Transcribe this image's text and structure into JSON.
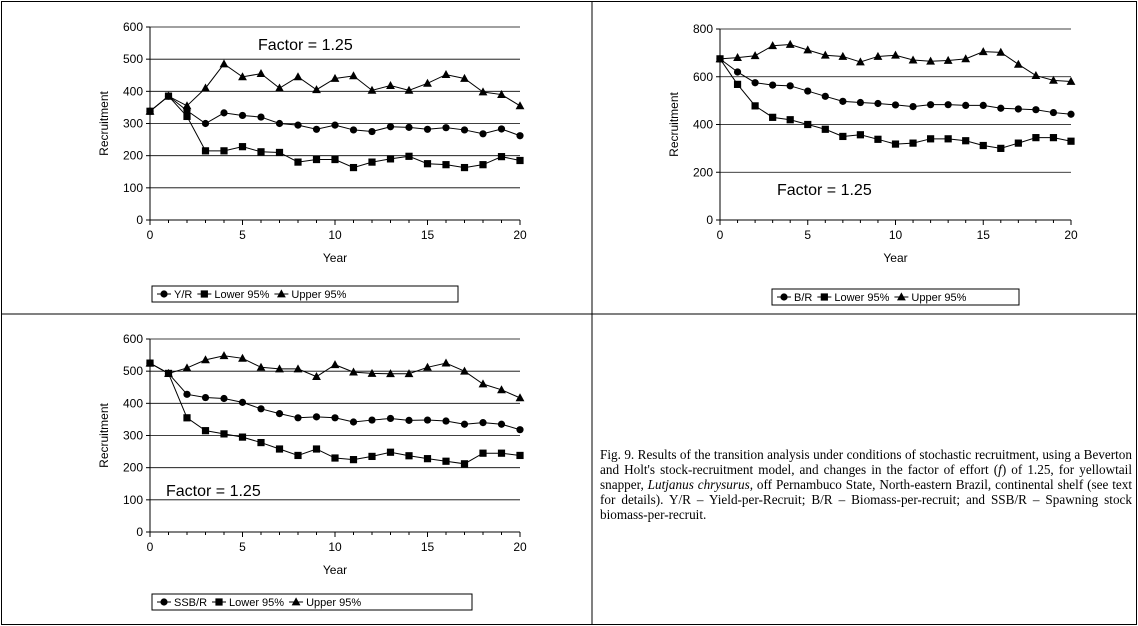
{
  "chart_data": [
    {
      "type": "line",
      "annotation": "Factor = 1.25",
      "xlabel": "Year",
      "ylabel": "Recruitment",
      "xlim": [
        0,
        20
      ],
      "ylim": [
        0,
        600
      ],
      "xticks": [
        "0",
        "5",
        "10",
        "15",
        "20"
      ],
      "yticks": [
        "0",
        "100",
        "200",
        "300",
        "400",
        "500",
        "600"
      ],
      "grid": "horizontal",
      "legend_position": "bottom",
      "x": [
        0,
        1,
        2,
        3,
        4,
        5,
        6,
        7,
        8,
        9,
        10,
        11,
        12,
        13,
        14,
        15,
        16,
        17,
        18,
        19,
        20
      ],
      "series": [
        {
          "name": "Y/R",
          "marker": "circle",
          "values": [
            338,
            385,
            340,
            300,
            333,
            325,
            320,
            300,
            295,
            282,
            295,
            280,
            275,
            290,
            288,
            282,
            287,
            280,
            268,
            283,
            262
          ]
        },
        {
          "name": "Lower 95%",
          "marker": "square",
          "values": [
            338,
            385,
            322,
            215,
            215,
            228,
            212,
            210,
            180,
            188,
            188,
            163,
            180,
            190,
            198,
            175,
            172,
            163,
            172,
            197,
            185
          ]
        },
        {
          "name": "Upper 95%",
          "marker": "triangle",
          "values": [
            338,
            385,
            355,
            410,
            485,
            445,
            455,
            410,
            445,
            405,
            440,
            448,
            403,
            418,
            403,
            425,
            452,
            440,
            398,
            390,
            355
          ]
        }
      ]
    },
    {
      "type": "line",
      "annotation": "Factor = 1.25",
      "xlabel": "Year",
      "ylabel": "Recruitment",
      "xlim": [
        0,
        20
      ],
      "ylim": [
        0,
        800
      ],
      "xticks": [
        "0",
        "5",
        "10",
        "15",
        "20"
      ],
      "yticks": [
        "0",
        "200",
        "400",
        "600",
        "800"
      ],
      "grid": "horizontal",
      "legend_position": "bottom",
      "x": [
        0,
        1,
        2,
        3,
        4,
        5,
        6,
        7,
        8,
        9,
        10,
        11,
        12,
        13,
        14,
        15,
        16,
        17,
        18,
        19,
        20
      ],
      "series": [
        {
          "name": "B/R",
          "marker": "circle",
          "values": [
            675,
            620,
            575,
            565,
            562,
            540,
            518,
            497,
            492,
            488,
            482,
            475,
            483,
            483,
            480,
            480,
            468,
            465,
            462,
            450,
            443
          ]
        },
        {
          "name": "Lower 95%",
          "marker": "square",
          "values": [
            675,
            568,
            478,
            430,
            420,
            400,
            380,
            350,
            357,
            338,
            318,
            322,
            340,
            340,
            332,
            312,
            300,
            322,
            345,
            345,
            330
          ]
        },
        {
          "name": "Upper 95%",
          "marker": "triangle",
          "values": [
            675,
            680,
            688,
            730,
            735,
            712,
            690,
            685,
            662,
            685,
            690,
            670,
            665,
            668,
            675,
            705,
            702,
            652,
            605,
            585,
            580
          ]
        }
      ]
    },
    {
      "type": "line",
      "annotation": "Factor = 1.25",
      "xlabel": "Year",
      "ylabel": "Recruitment",
      "xlim": [
        0,
        20
      ],
      "ylim": [
        0,
        600
      ],
      "xticks": [
        "0",
        "5",
        "10",
        "15",
        "20"
      ],
      "yticks": [
        "0",
        "100",
        "200",
        "300",
        "400",
        "500",
        "600"
      ],
      "grid": "horizontal",
      "legend_position": "bottom",
      "x": [
        0,
        1,
        2,
        3,
        4,
        5,
        6,
        7,
        8,
        9,
        10,
        11,
        12,
        13,
        14,
        15,
        16,
        17,
        18,
        19,
        20
      ],
      "series": [
        {
          "name": "SSB/R",
          "marker": "circle",
          "values": [
            525,
            493,
            428,
            418,
            415,
            403,
            383,
            368,
            355,
            358,
            355,
            342,
            348,
            353,
            347,
            348,
            345,
            335,
            340,
            335,
            318
          ]
        },
        {
          "name": "Lower 95%",
          "marker": "square",
          "values": [
            525,
            493,
            355,
            315,
            305,
            295,
            278,
            258,
            238,
            258,
            230,
            225,
            235,
            248,
            237,
            228,
            220,
            212,
            245,
            245,
            238
          ]
        },
        {
          "name": "Upper 95%",
          "marker": "triangle",
          "values": [
            525,
            493,
            510,
            535,
            548,
            540,
            512,
            507,
            507,
            483,
            520,
            497,
            493,
            492,
            492,
            512,
            525,
            500,
            460,
            442,
            417
          ]
        }
      ]
    }
  ],
  "caption": {
    "p1": "Fig. 9. Results of the transition analysis under conditions of stochastic recruitment, using a Beverton and Holt's stock-recruitment model, and changes in the factor of effort (",
    "f": "f",
    "p2": ") of 1.25, for yellowtail snapper, ",
    "species": "Lutjanus chrysurus,",
    "p3": " off Pernambuco State, North-eastern Brazil, continental shelf (see text for details). Y/R – Yield-per-Recruit; B/R – Biomass-per-recruit; and SSB/R – Spawning stock biomass-per-recruit."
  }
}
